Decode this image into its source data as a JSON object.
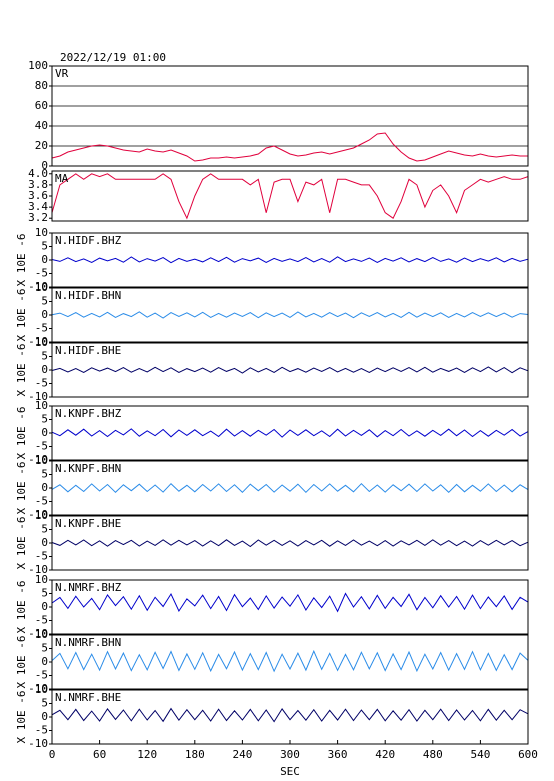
{
  "chart_data": {
    "type": "line",
    "date": "2022/12/19 01:00",
    "xlabel": "SEC",
    "xlim": [
      0,
      600
    ],
    "xticks": [
      0,
      60,
      120,
      180,
      240,
      300,
      360,
      420,
      480,
      540,
      600
    ],
    "x": [
      0,
      10,
      20,
      30,
      40,
      50,
      60,
      70,
      80,
      90,
      100,
      110,
      120,
      130,
      140,
      150,
      160,
      170,
      180,
      190,
      200,
      210,
      220,
      230,
      240,
      250,
      260,
      270,
      280,
      290,
      300,
      310,
      320,
      330,
      340,
      350,
      360,
      370,
      380,
      390,
      400,
      410,
      420,
      430,
      440,
      450,
      460,
      470,
      480,
      490,
      500,
      510,
      520,
      530,
      540,
      550,
      560,
      570,
      580,
      590,
      600
    ],
    "panels": [
      {
        "title": "VR",
        "color": "#e0003c",
        "ylim": [
          0,
          100
        ],
        "yticks": [
          0,
          20,
          40,
          60,
          80,
          100
        ],
        "grid": true,
        "values": [
          8,
          10,
          14,
          16,
          18,
          20,
          21,
          20,
          18,
          16,
          15,
          14,
          17,
          15,
          14,
          16,
          13,
          10,
          5,
          6,
          8,
          8,
          9,
          8,
          9,
          10,
          12,
          18,
          20,
          16,
          12,
          10,
          11,
          13,
          14,
          12,
          14,
          16,
          18,
          22,
          26,
          32,
          33,
          22,
          14,
          8,
          5,
          6,
          9,
          12,
          15,
          13,
          11,
          10,
          12,
          10,
          9,
          10,
          11,
          10,
          10
        ]
      },
      {
        "title": "MA",
        "color": "#e0003c",
        "ylim": [
          3.15,
          4.05
        ],
        "yticks": [
          3.2,
          3.4,
          3.6,
          3.8,
          {
            "value": 4,
            "label": "4.0"
          }
        ],
        "grid": false,
        "values": [
          3.3,
          3.8,
          3.9,
          4.0,
          3.9,
          4.0,
          3.95,
          4.0,
          3.9,
          3.9,
          3.9,
          3.9,
          3.9,
          3.9,
          4.0,
          3.9,
          3.5,
          3.2,
          3.6,
          3.9,
          4.0,
          3.9,
          3.9,
          3.9,
          3.9,
          3.8,
          3.9,
          3.3,
          3.85,
          3.9,
          3.9,
          3.5,
          3.85,
          3.8,
          3.9,
          3.3,
          3.9,
          3.9,
          3.85,
          3.8,
          3.8,
          3.6,
          3.3,
          3.2,
          3.5,
          3.9,
          3.8,
          3.4,
          3.7,
          3.8,
          3.6,
          3.3,
          3.7,
          3.8,
          3.9,
          3.85,
          3.9,
          3.95,
          3.9,
          3.9,
          3.95
        ]
      },
      {
        "title": "N.HIDF.BHZ",
        "ylabel": "X 10E -6",
        "color": "#0000cc",
        "ylim": [
          -10,
          10
        ],
        "yticks": [
          -10,
          -5,
          0,
          5,
          10
        ],
        "grid": false,
        "values": [
          0.2,
          -0.5,
          0.8,
          -0.6,
          0.4,
          -0.9,
          0.7,
          -0.3,
          0.6,
          -0.8,
          1.1,
          -0.7,
          0.5,
          -0.4,
          0.9,
          -1.0,
          0.6,
          -0.5,
          0.3,
          -0.7,
          0.8,
          -0.6,
          1.0,
          -0.8,
          0.5,
          -0.3,
          0.7,
          -0.9,
          0.6,
          -0.5,
          0.4,
          -0.6,
          0.9,
          -0.7,
          0.5,
          -0.8,
          1.2,
          -0.6,
          0.4,
          -0.5,
          0.7,
          -0.9,
          0.6,
          -0.4,
          0.8,
          -0.7,
          0.5,
          -0.6,
          0.9,
          -0.5,
          0.4,
          -0.8,
          0.7,
          -0.6,
          0.5,
          -0.4,
          0.8,
          -0.7,
          0.6,
          -0.5,
          0.3
        ]
      },
      {
        "title": "N.HIDF.BHN",
        "ylabel": "X 10E -6",
        "color": "#2b8ce8",
        "ylim": [
          -10,
          10
        ],
        "yticks": [
          -10,
          -5,
          0,
          5,
          10
        ],
        "grid": false,
        "values": [
          0.1,
          0.7,
          -0.6,
          0.9,
          -0.8,
          0.6,
          -0.7,
          1.0,
          -0.9,
          0.5,
          -0.6,
          1.2,
          -0.8,
          0.7,
          -1.1,
          0.9,
          -0.5,
          0.8,
          -0.7,
          1.0,
          -0.9,
          0.6,
          -0.8,
          0.7,
          -0.5,
          0.9,
          -1.0,
          0.8,
          -0.6,
          0.7,
          -0.9,
          1.1,
          -0.7,
          0.6,
          -0.8,
          0.9,
          -0.6,
          0.7,
          -1.0,
          0.8,
          -0.5,
          0.9,
          -0.7,
          0.6,
          -0.9,
          1.0,
          -0.8,
          0.7,
          -0.6,
          0.8,
          -0.9,
          0.6,
          -0.7,
          0.9,
          -0.5,
          0.8,
          -0.6,
          0.7,
          -0.8,
          0.5,
          0.2
        ]
      },
      {
        "title": "N.HIDF.BHE",
        "ylabel": "X 10E -6",
        "color": "#000066",
        "ylim": [
          -10,
          10
        ],
        "yticks": [
          -10,
          -5,
          0,
          5,
          10
        ],
        "grid": false,
        "values": [
          -0.2,
          0.6,
          -0.7,
          0.5,
          -0.9,
          0.8,
          -0.4,
          0.7,
          -0.6,
          0.9,
          -0.8,
          0.5,
          -0.7,
          1.0,
          -0.6,
          0.8,
          -0.9,
          0.5,
          -0.6,
          0.7,
          -0.8,
          0.9,
          -0.5,
          0.6,
          -1.1,
          0.8,
          -0.7,
          0.6,
          -0.9,
          1.0,
          -0.6,
          0.5,
          -0.8,
          0.7,
          -0.5,
          0.9,
          -0.7,
          0.6,
          -0.8,
          0.5,
          -0.9,
          0.7,
          -0.6,
          0.8,
          -0.5,
          0.9,
          -0.7,
          1.0,
          -0.8,
          0.6,
          -0.5,
          0.7,
          -0.9,
          0.8,
          -0.6,
          1.1,
          -0.7,
          0.9,
          -1.0,
          0.8,
          -0.3
        ]
      },
      {
        "title": "N.KNPF.BHZ",
        "ylabel": "X 10E -6",
        "color": "#0000cc",
        "ylim": [
          -10,
          10
        ],
        "yticks": [
          -10,
          -5,
          0,
          5,
          10
        ],
        "grid": false,
        "values": [
          0.3,
          -1.0,
          1.2,
          -0.8,
          1.4,
          -1.1,
          0.9,
          -1.3,
          1.0,
          -0.7,
          1.5,
          -1.2,
          0.8,
          -1.0,
          1.3,
          -1.4,
          1.1,
          -0.9,
          1.2,
          -1.0,
          0.7,
          -1.3,
          1.4,
          -1.1,
          0.9,
          -1.2,
          1.0,
          -0.8,
          1.3,
          -1.5,
          1.1,
          -0.9,
          1.2,
          -1.0,
          0.8,
          -1.3,
          1.4,
          -1.1,
          1.0,
          -0.9,
          1.2,
          -1.4,
          0.9,
          -1.0,
          1.3,
          -1.1,
          0.8,
          -1.2,
          1.0,
          -0.9,
          1.4,
          -1.0,
          1.1,
          -1.3,
          0.9,
          -1.2,
          1.0,
          -0.8,
          1.3,
          -1.1,
          0.5
        ]
      },
      {
        "title": "N.KNPF.BHN",
        "ylabel": "X 10E -6",
        "color": "#2b8ce8",
        "ylim": [
          -10,
          10
        ],
        "yticks": [
          -10,
          -5,
          0,
          5,
          10
        ],
        "grid": false,
        "values": [
          -0.5,
          1.2,
          -1.4,
          1.0,
          -1.3,
          1.5,
          -1.1,
          1.3,
          -1.6,
          1.2,
          -1.0,
          1.4,
          -1.3,
          1.1,
          -1.5,
          1.6,
          -1.2,
          1.0,
          -1.4,
          1.3,
          -1.1,
          1.5,
          -1.3,
          1.2,
          -1.6,
          1.4,
          -1.0,
          1.3,
          -1.5,
          1.1,
          -1.2,
          1.4,
          -1.6,
          1.3,
          -1.1,
          1.5,
          -1.2,
          1.0,
          -1.4,
          1.6,
          -1.3,
          1.1,
          -1.5,
          1.2,
          -1.0,
          1.4,
          -1.3,
          1.5,
          -1.1,
          1.2,
          -1.6,
          1.3,
          -1.4,
          1.0,
          -1.2,
          1.5,
          -1.3,
          1.1,
          -1.4,
          1.2,
          -0.6
        ]
      },
      {
        "title": "N.KNPF.BHE",
        "ylabel": "X 10E -6",
        "color": "#000066",
        "ylim": [
          -10,
          10
        ],
        "yticks": [
          -10,
          -5,
          0,
          5,
          10
        ],
        "grid": false,
        "values": [
          0.2,
          -0.9,
          1.0,
          -0.7,
          1.1,
          -1.0,
          0.8,
          -1.2,
          0.9,
          -0.6,
          1.0,
          -1.1,
          0.7,
          -0.9,
          1.2,
          -0.8,
          1.0,
          -0.7,
          0.9,
          -1.1,
          0.8,
          -1.0,
          1.2,
          -0.9,
          0.7,
          -1.3,
          1.1,
          -0.8,
          1.0,
          -0.9,
          0.8,
          -1.1,
          0.9,
          -0.7,
          1.0,
          -1.2,
          0.8,
          -0.9,
          1.1,
          -0.8,
          0.7,
          -1.0,
          0.9,
          -1.1,
          0.8,
          -0.7,
          1.0,
          -0.9,
          1.2,
          -0.8,
          0.9,
          -1.0,
          0.7,
          -1.1,
          0.9,
          -0.8,
          1.0,
          -0.7,
          0.9,
          -1.0,
          0.3
        ]
      },
      {
        "title": "N.NMRF.BHZ",
        "ylabel": "X 10E -6",
        "color": "#0000cc",
        "ylim": [
          -10,
          10
        ],
        "yticks": [
          -10,
          -5,
          0,
          5,
          10
        ],
        "grid": false,
        "values": [
          1.5,
          3.5,
          -0.5,
          4.0,
          0.0,
          3.2,
          -1.0,
          4.5,
          0.5,
          3.8,
          -0.8,
          4.2,
          -1.2,
          3.6,
          0.2,
          4.8,
          -1.5,
          3.0,
          0.4,
          4.4,
          -0.6,
          3.9,
          -1.3,
          4.6,
          0.1,
          3.3,
          -0.9,
          4.1,
          -0.4,
          3.7,
          0.3,
          4.5,
          -1.1,
          3.4,
          -0.2,
          4.0,
          -1.6,
          5.0,
          0.0,
          3.8,
          -0.7,
          4.3,
          -0.5,
          3.6,
          0.2,
          4.7,
          -1.0,
          3.5,
          -0.3,
          4.2,
          0.0,
          3.9,
          -0.8,
          4.4,
          -0.6,
          3.7,
          0.1,
          4.1,
          -0.9,
          3.6,
          1.8
        ]
      },
      {
        "title": "N.NMRF.BHN",
        "ylabel": "X 10E -6",
        "color": "#2b8ce8",
        "ylim": [
          -10,
          10
        ],
        "yticks": [
          -10,
          -5,
          0,
          5,
          10
        ],
        "grid": false,
        "values": [
          0.5,
          3.2,
          -2.5,
          3.5,
          -2.8,
          2.9,
          -3.0,
          3.8,
          -2.6,
          3.3,
          -3.2,
          2.7,
          -2.9,
          3.6,
          -2.4,
          3.9,
          -3.1,
          3.0,
          -2.7,
          3.4,
          -3.3,
          2.8,
          -2.5,
          3.7,
          -3.0,
          3.1,
          -2.8,
          3.5,
          -3.4,
          2.9,
          -2.6,
          3.3,
          -3.0,
          4.0,
          -2.7,
          3.2,
          -3.1,
          2.8,
          -2.9,
          3.6,
          -2.5,
          3.4,
          -3.2,
          3.0,
          -2.8,
          3.7,
          -3.3,
          2.9,
          -2.6,
          3.5,
          -3.0,
          3.1,
          -2.7,
          3.8,
          -2.9,
          3.2,
          -3.1,
          2.7,
          -2.8,
          3.3,
          0.6
        ]
      },
      {
        "title": "N.NMRF.BHE",
        "ylabel": "X 10E -6",
        "color": "#000066",
        "ylim": [
          -10,
          10
        ],
        "yticks": [
          -10,
          -5,
          0,
          5,
          10
        ],
        "grid": false,
        "values": [
          0.8,
          2.5,
          -1.0,
          2.8,
          -1.3,
          2.2,
          -1.5,
          3.0,
          -0.9,
          2.6,
          -1.4,
          2.9,
          -1.1,
          2.4,
          -1.6,
          3.1,
          -1.2,
          2.7,
          -1.0,
          2.5,
          -1.5,
          2.9,
          -1.3,
          2.3,
          -1.1,
          2.8,
          -1.4,
          2.6,
          -1.7,
          3.0,
          -1.0,
          2.4,
          -1.2,
          2.7,
          -1.5,
          2.5,
          -1.1,
          2.9,
          -1.3,
          2.6,
          -1.0,
          2.8,
          -1.4,
          2.3,
          -1.2,
          2.7,
          -1.5,
          2.5,
          -1.0,
          2.9,
          -1.3,
          2.6,
          -1.1,
          2.4,
          -1.4,
          2.8,
          -1.2,
          2.5,
          -1.0,
          2.7,
          1.2
        ]
      }
    ]
  }
}
